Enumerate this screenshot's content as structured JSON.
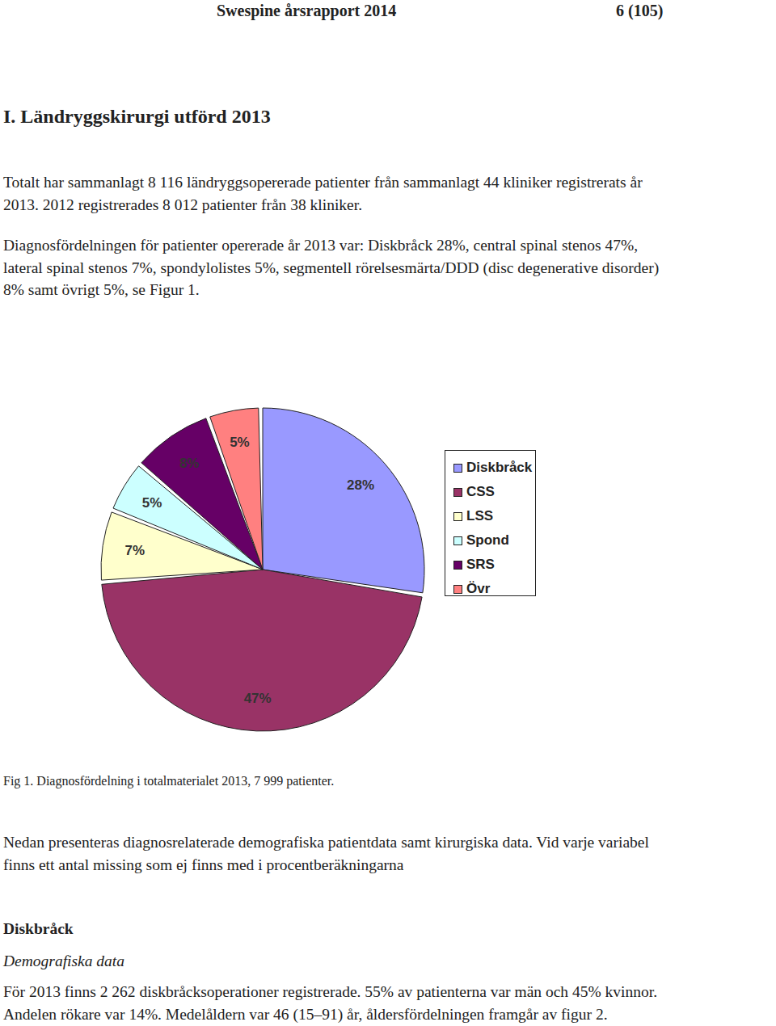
{
  "header": {
    "title": "Swespine årsrapport 2014",
    "page": "6 (105)"
  },
  "heading": "I. Ländryggskirurgi utförd 2013",
  "intro": [
    [
      "Totalt har sammanlagt 8 116 ländryggsopererade patienter från sammanlagt 44 kliniker registrerats år",
      "2013. 2012 registrerades 8 012 patienter från 38 kliniker."
    ],
    [
      "Diagnosfördelningen för patienter opererade år 2013 var: Diskbråck 28%, central spinal stenos 47%,",
      "lateral spinal stenos 7%, spondylolistes 5%, segmentell rörelsesmärta/DDD (disc degenerative disorder)",
      "8% samt övrigt 5%, se Figur 1."
    ]
  ],
  "chart_data": {
    "type": "pie",
    "categories": [
      "Diskbråck",
      "CSS",
      "LSS",
      "Spond",
      "SRS",
      "Övr"
    ],
    "values": [
      28,
      47,
      7,
      5,
      8,
      5
    ],
    "value_labels": [
      "28%",
      "47%",
      "7%",
      "5%",
      "8%",
      "5%"
    ],
    "colors": [
      "#9999ff",
      "#993366",
      "#ffffcc",
      "#ccffff",
      "#660066",
      "#ff8080"
    ],
    "data_labels": true,
    "legend": "right"
  },
  "caption": "Fig 1. Diagnosfördelning i totalmaterialet 2013, 7 999 patienter.",
  "after": [
    "Nedan presenteras diagnosrelaterade demografiska patientdata samt kirurgiska data. Vid varje variabel",
    "finns ett antal missing som ej finns med i procentberäkningarna"
  ],
  "section": {
    "title": "Diskbråck",
    "subtitle": "Demografiska data",
    "text": [
      "För 2013 finns 2 262 diskbråcksoperationer registrerade. 55% av patienterna var män och 45% kvinnor.",
      "Andelen rökare var 14%. Medelåldern var 46 (15–91) år, åldersfördelningen framgår av figur 2."
    ]
  }
}
